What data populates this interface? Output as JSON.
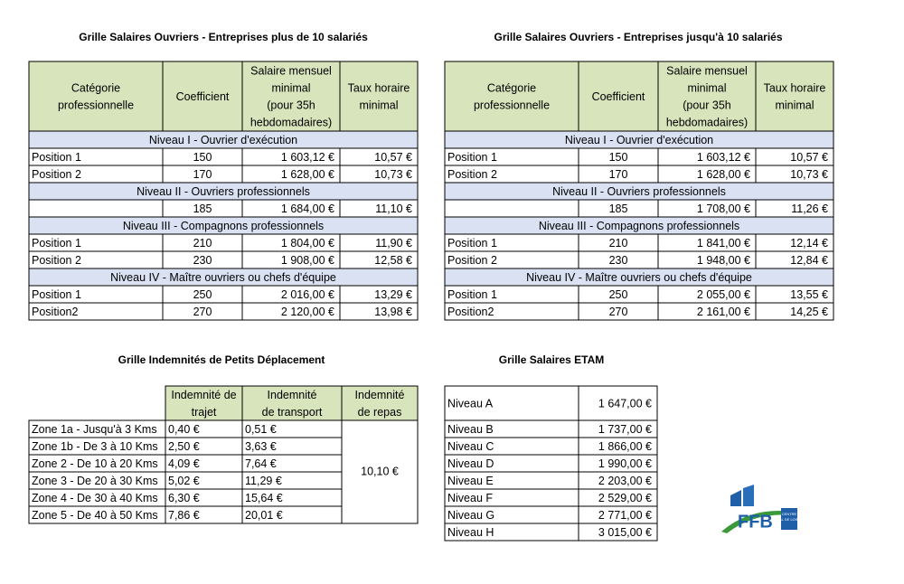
{
  "table_left": {
    "title": "Grille Salaires Ouvriers - Entreprises plus de 10 salariés",
    "headers": [
      [
        "Catégorie",
        "professionnelle"
      ],
      [
        "Coefficient"
      ],
      [
        "Salaire mensuel",
        "minimal",
        "(pour 35h",
        "hebdomadaires)"
      ],
      [
        "Taux horaire",
        "minimal"
      ]
    ],
    "sections": [
      {
        "label": "Niveau I - Ouvrier d'exécution",
        "rows": [
          [
            "Position 1",
            "150",
            "1 603,12 €",
            "10,57 €"
          ],
          [
            "Position 2",
            "170",
            "1 628,00 €",
            "10,73 €"
          ]
        ]
      },
      {
        "label": "Niveau II - Ouvriers professionnels",
        "rows": [
          [
            null,
            "185",
            "1 684,00 €",
            "11,10 €"
          ]
        ]
      },
      {
        "label": "Niveau III - Compagnons professionnels",
        "rows": [
          [
            "Position 1",
            "210",
            "1 804,00 €",
            "11,90 €"
          ],
          [
            "Position 2",
            "230",
            "1 908,00 €",
            "12,58 €"
          ]
        ]
      },
      {
        "label": "Niveau IV - Maître ouvriers ou chefs d'équipe",
        "rows": [
          [
            "Position 1",
            "250",
            "2 016,00 €",
            "13,29 €"
          ],
          [
            "Position2",
            "270",
            "2 120,00 €",
            "13,98 €"
          ]
        ]
      }
    ]
  },
  "table_right": {
    "title": "Grille Salaires Ouvriers - Entreprises jusqu'à 10 salariés",
    "headers": [
      [
        "Catégorie",
        "professionnelle"
      ],
      [
        "Coefficient"
      ],
      [
        "Salaire mensuel",
        "minimal",
        "(pour 35h",
        "hebdomadaires)"
      ],
      [
        "Taux horaire",
        "minimal"
      ]
    ],
    "sections": [
      {
        "label": "Niveau I - Ouvrier d'exécution",
        "rows": [
          [
            "Position 1",
            "150",
            "1 603,12 €",
            "10,57 €"
          ],
          [
            "Position 2",
            "170",
            "1 628,00 €",
            "10,73 €"
          ]
        ]
      },
      {
        "label": "Niveau II - Ouvriers professionnels",
        "rows": [
          [
            null,
            "185",
            "1 708,00 €",
            "11,26 €"
          ]
        ]
      },
      {
        "label": "Niveau III - Compagnons professionnels",
        "rows": [
          [
            "Position 1",
            "210",
            "1 841,00 €",
            "12,14 €"
          ],
          [
            "Position 2",
            "230",
            "1 948,00 €",
            "12,84 €"
          ]
        ]
      },
      {
        "label": "Niveau IV - Maître ouvriers ou chefs d'équipe",
        "rows": [
          [
            "Position 1",
            "250",
            "2 055,00 €",
            "13,55 €"
          ],
          [
            "Position2",
            "270",
            "2 161,00 €",
            "14,25 €"
          ]
        ]
      }
    ]
  },
  "indemnites": {
    "title": "Grille Indemnités de Petits Déplacement",
    "headers": [
      [
        "Indemnité de",
        "trajet"
      ],
      [
        "Indemnité",
        "de transport"
      ],
      [
        "Indemnité",
        "de repas"
      ]
    ],
    "rows": [
      [
        "Zone 1a - Jusqu'à 3 Kms",
        "0,40 €",
        "0,51 €"
      ],
      [
        "Zone 1b - De 3 à 10 Kms",
        "2,50 €",
        "3,63 €"
      ],
      [
        "Zone 2 - De 10 à 20 Kms",
        "4,09 €",
        "7,64 €"
      ],
      [
        "Zone 3 - De 20 à 30 Kms",
        "5,02 €",
        "11,29 €"
      ],
      [
        "Zone 4 - De 30 à 40 Kms",
        "6,30 €",
        "15,64 €"
      ],
      [
        "Zone 5 - De 40 à 50 Kms",
        "7,86 €",
        "20,01 €"
      ]
    ],
    "repas": "10,10 €"
  },
  "etam": {
    "title": "Grille Salaires ETAM",
    "rows": [
      [
        "Niveau A",
        "1 647,00 €"
      ],
      [
        "Niveau B",
        "1 737,00 €"
      ],
      [
        "Niveau C",
        "1 866,00 €"
      ],
      [
        "Niveau D",
        "1 990,00 €"
      ],
      [
        "Niveau E",
        "2 203,00 €"
      ],
      [
        "Niveau F",
        "2 529,00 €"
      ],
      [
        "Niveau G",
        "2 771,00 €"
      ],
      [
        "Niveau H",
        "3 015,00 €"
      ]
    ]
  },
  "logo": {
    "name": "FFB",
    "region_1": "CENTRE",
    "region_2": "VAL DE LOIRE"
  }
}
